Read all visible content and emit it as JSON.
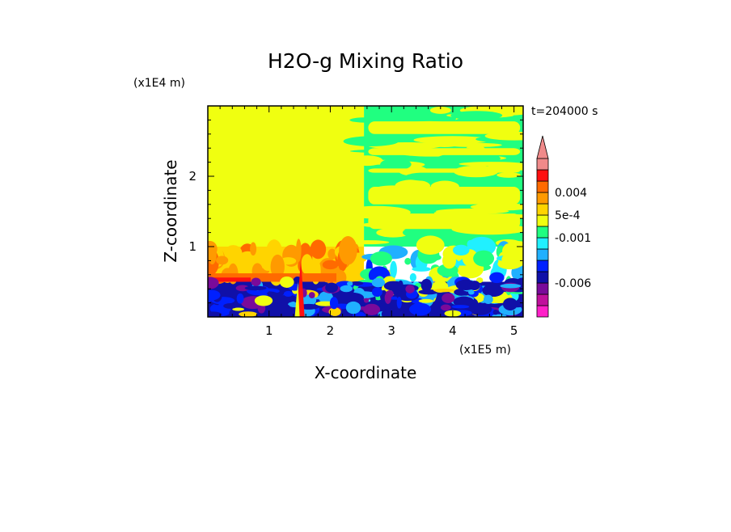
{
  "chart_data": {
    "type": "heatmap",
    "title": "H2O-g Mixing Ratio",
    "xlabel": "X-coordinate",
    "ylabel": "Z-coordinate",
    "x_scale_label": "(x1E5 m)",
    "y_scale_label": "(x1E4 m)",
    "time_label": "t=204000 s",
    "xlim": [
      0,
      5.15
    ],
    "ylim": [
      0,
      3.0
    ],
    "x_ticks": [
      1,
      2,
      3,
      4,
      5
    ],
    "y_ticks": [
      1,
      2
    ],
    "colorbar": {
      "colors": [
        "#ff20c8",
        "#c0109c",
        "#7a0a9a",
        "#1010a8",
        "#0020ff",
        "#20b0ff",
        "#20f0ff",
        "#20ff80",
        "#f0ff10",
        "#ffd400",
        "#ff9a00",
        "#ff6a00",
        "#ff1010",
        "#f08a8a"
      ],
      "tick_labels": [
        {
          "label": "-0.006",
          "index": 3
        },
        {
          "label": "-0.001",
          "index": 7
        },
        {
          "label": "5e-4",
          "index": 9
        },
        {
          "label": "0.004",
          "index": 11
        }
      ],
      "extend_max": true
    },
    "regions": [
      {
        "desc": "upper left",
        "x": [
          0,
          2.55
        ],
        "z": [
          1.0,
          3.0
        ],
        "value_color": "#f0ff10"
      },
      {
        "desc": "upper right band",
        "x": [
          2.55,
          5.15
        ],
        "z": [
          1.0,
          3.0
        ],
        "value_color": "#20ff80"
      },
      {
        "desc": "mid left warm layer",
        "x": [
          0,
          2.55
        ],
        "z": [
          0.5,
          1.0
        ],
        "value_color": "#ffd400"
      },
      {
        "desc": "low level",
        "x": [
          0,
          5.15
        ],
        "z": [
          0,
          0.5
        ],
        "value_color": "#1010a8"
      }
    ]
  }
}
